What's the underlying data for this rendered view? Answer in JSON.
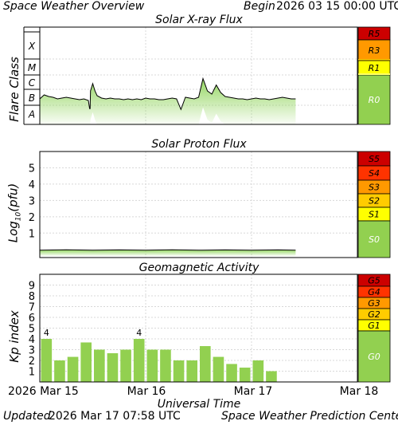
{
  "header": {
    "title": "Space Weather Overview",
    "begin_label": "Begin",
    "begin_date": "2026 03 15 00:00 UTC"
  },
  "footer": {
    "updated_label": "Updated",
    "updated_date": "2026 Mar 17 07:58 UTC",
    "center": "Space Weather Prediction Center"
  },
  "chart_data": [
    {
      "type": "line",
      "title": "Solar X-ray Flux",
      "ylabel": "Flare Class",
      "y_scale": "log",
      "y_tick_labels": [
        "A",
        "B",
        "C",
        "M",
        "X"
      ],
      "xlabel": "Universal Time",
      "x_tick_labels": [
        "2026 Mar 15",
        "Mar 16",
        "Mar 17",
        "Mar 18"
      ],
      "xlim": [
        0,
        72
      ],
      "grid": true,
      "fill_color": "#8fd45a",
      "flux_x_hours": [
        0,
        1,
        2,
        3,
        4,
        5,
        6,
        7,
        8,
        9,
        10,
        11,
        11.3,
        11.4,
        11.5,
        12,
        12.5,
        13,
        14,
        15,
        16,
        17,
        18,
        19,
        20,
        21,
        22,
        23,
        24,
        25,
        26,
        27,
        28,
        29,
        30,
        31,
        32,
        33,
        34,
        35,
        36,
        37,
        38,
        39,
        40,
        41,
        42,
        43,
        44,
        45,
        46,
        47,
        48,
        49,
        50,
        51,
        52,
        53,
        54,
        55,
        56,
        57,
        58
      ],
      "flux_y_class_units": [
        1.4,
        1.65,
        1.55,
        1.5,
        1.4,
        1.45,
        1.5,
        1.45,
        1.4,
        1.35,
        1.4,
        1.3,
        0.8,
        0.8,
        1.9,
        2.4,
        1.9,
        1.6,
        1.45,
        1.4,
        1.45,
        1.4,
        1.4,
        1.35,
        1.4,
        1.35,
        1.4,
        1.35,
        1.45,
        1.4,
        1.4,
        1.35,
        1.35,
        1.4,
        1.45,
        1.4,
        0.75,
        1.5,
        1.45,
        1.4,
        1.5,
        2.75,
        1.9,
        1.7,
        2.3,
        1.8,
        1.55,
        1.5,
        1.45,
        1.4,
        1.4,
        1.35,
        1.4,
        1.45,
        1.4,
        1.4,
        1.35,
        1.4,
        1.45,
        1.5,
        1.45,
        1.4,
        1.4
      ],
      "scale": [
        {
          "label": "R5",
          "color": "#cc0000"
        },
        {
          "label": "R3",
          "color": "#ff9900"
        },
        {
          "label": "R1",
          "color": "#ffff00"
        },
        {
          "label": "R0",
          "color": "#92d050"
        }
      ]
    },
    {
      "type": "line",
      "title": "Solar Proton Flux",
      "ylabel": "Log10(pfu)",
      "ylim": [
        -0.5,
        6
      ],
      "y_tick_labels": [
        "1",
        "2",
        "3",
        "4",
        "5"
      ],
      "xlabel": "Universal Time",
      "x_tick_labels": [
        "2026 Mar 15",
        "Mar 16",
        "Mar 17",
        "Mar 18"
      ],
      "xlim": [
        0,
        72
      ],
      "grid": true,
      "fill_color": "#8fd45a",
      "flux_x_hours": [
        0,
        6,
        12,
        18,
        24,
        30,
        36,
        42,
        48,
        54,
        58
      ],
      "flux_y_log": [
        -0.05,
        -0.02,
        -0.05,
        -0.03,
        -0.05,
        -0.02,
        -0.05,
        -0.03,
        -0.05,
        -0.03,
        -0.05
      ],
      "scale": [
        {
          "label": "S5",
          "color": "#cc0000"
        },
        {
          "label": "S4",
          "color": "#ff3300"
        },
        {
          "label": "S3",
          "color": "#ff9900"
        },
        {
          "label": "S2",
          "color": "#ffcc00"
        },
        {
          "label": "S1",
          "color": "#ffff00"
        },
        {
          "label": "S0",
          "color": "#92d050"
        }
      ]
    },
    {
      "type": "bar",
      "title": "Geomagnetic Activity",
      "ylabel": "Kp index",
      "ylim": [
        0,
        10
      ],
      "y_tick_labels": [
        "1",
        "2",
        "3",
        "4",
        "5",
        "6",
        "7",
        "8",
        "9"
      ],
      "xlabel": "Universal Time",
      "x_tick_labels": [
        "2026 Mar 15",
        "Mar 16",
        "Mar 17",
        "Mar 18"
      ],
      "xlim": [
        0,
        72
      ],
      "grid": true,
      "bar_color": "#92d050",
      "bar_start_hours": [
        0,
        3,
        6,
        9,
        12,
        15,
        18,
        21,
        24,
        27,
        30,
        33,
        36,
        39,
        42,
        45,
        48,
        51
      ],
      "values": [
        4.0,
        2.0,
        2.33,
        3.67,
        3.0,
        2.67,
        3.0,
        4.0,
        3.0,
        3.0,
        2.0,
        2.0,
        3.33,
        2.33,
        1.67,
        1.33,
        2.0,
        1.0
      ],
      "value_labels": [
        "4",
        "",
        "",
        "",
        "",
        "",
        "",
        "4",
        "",
        "",
        "",
        "",
        "",
        "",
        "",
        "",
        "",
        ""
      ],
      "scale": [
        {
          "label": "G5",
          "color": "#cc0000"
        },
        {
          "label": "G4",
          "color": "#ff3300"
        },
        {
          "label": "G3",
          "color": "#ff9900"
        },
        {
          "label": "G2",
          "color": "#ffcc00"
        },
        {
          "label": "G1",
          "color": "#ffff00"
        },
        {
          "label": "G0",
          "color": "#92d050"
        }
      ]
    }
  ]
}
